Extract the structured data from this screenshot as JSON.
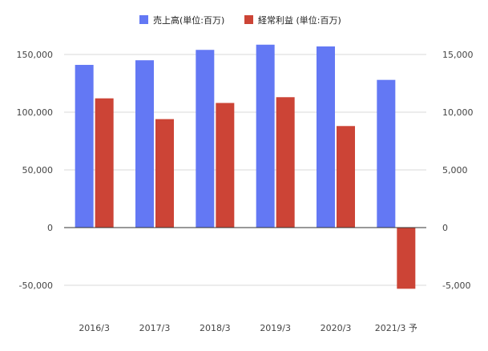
{
  "chart_data": {
    "type": "bar",
    "categories": [
      "2016/3",
      "2017/3",
      "2018/3",
      "2019/3",
      "2020/3",
      "2021/3 予"
    ],
    "series": [
      {
        "name": "売上高(単位:百万)",
        "axis": "left",
        "color": "#6378f4",
        "values": [
          141000,
          145000,
          154000,
          158500,
          157000,
          128000
        ]
      },
      {
        "name": "経常利益 (単位:百万)",
        "axis": "right",
        "color": "#cc4436",
        "values": [
          11200,
          9400,
          10800,
          11300,
          8800,
          -5300
        ]
      }
    ],
    "left_axis": {
      "ylim": [
        -50000,
        150000
      ],
      "ticks": [
        -50000,
        0,
        50000,
        100000,
        150000
      ],
      "tick_labels": [
        "-50,000",
        "0",
        "50,000",
        "100,000",
        "150,000"
      ]
    },
    "right_axis": {
      "ylim": [
        -5000,
        15000
      ],
      "ticks": [
        -5000,
        0,
        5000,
        10000,
        15000
      ],
      "tick_labels": [
        "-5,000",
        "0",
        "5,000",
        "10,000",
        "15,000"
      ]
    },
    "grid": true,
    "legend_position": "top-center",
    "title": "",
    "xlabel": "",
    "ylabel": ""
  }
}
